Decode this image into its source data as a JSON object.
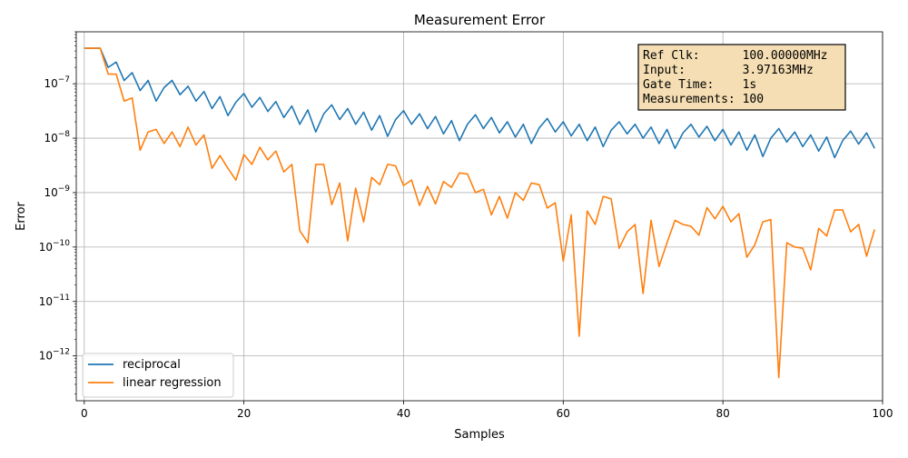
{
  "chart_data": {
    "type": "line",
    "title": "Measurement Error",
    "xlabel": "Samples",
    "ylabel": "Error",
    "xlim": [
      -1,
      100
    ],
    "ylim": [
      1.5e-13,
      9e-07
    ],
    "yscale": "log",
    "grid": true,
    "legend_position": "lower-left",
    "x_ticks": [
      0,
      20,
      40,
      60,
      80,
      100
    ],
    "y_ticks": [
      {
        "value": 1e-12,
        "label": "10^-12"
      },
      {
        "value": 1e-11,
        "label": "10^-11"
      },
      {
        "value": 1e-10,
        "label": "10^-10"
      },
      {
        "value": 1e-09,
        "label": "10^-9"
      },
      {
        "value": 1e-08,
        "label": "10^-8"
      },
      {
        "value": 1e-07,
        "label": "10^-7"
      }
    ],
    "annotation": [
      "Ref Clk:      100.00000MHz",
      "Input:        3.97163MHz",
      "Gate Time:    1s",
      "Measurements: 100"
    ],
    "annotation_colors": {
      "background": "#f5deb3",
      "border": "#000000"
    },
    "x": [
      0,
      1,
      2,
      3,
      4,
      5,
      6,
      7,
      8,
      9,
      10,
      11,
      12,
      13,
      14,
      15,
      16,
      17,
      18,
      19,
      20,
      21,
      22,
      23,
      24,
      25,
      26,
      27,
      28,
      29,
      30,
      31,
      32,
      33,
      34,
      35,
      36,
      37,
      38,
      39,
      40,
      41,
      42,
      43,
      44,
      45,
      46,
      47,
      48,
      49,
      50,
      51,
      52,
      53,
      54,
      55,
      56,
      57,
      58,
      59,
      60,
      61,
      62,
      63,
      64,
      65,
      66,
      67,
      68,
      69,
      70,
      71,
      72,
      73,
      74,
      75,
      76,
      77,
      78,
      79,
      80,
      81,
      82,
      83,
      84,
      85,
      86,
      87,
      88,
      89,
      90,
      91,
      92,
      93,
      94,
      95,
      96,
      97,
      98,
      99
    ],
    "series": [
      {
        "name": "reciprocal",
        "color": "#1f77b4",
        "values": [
          4.5e-07,
          4.5e-07,
          4.5e-07,
          2e-07,
          2.5e-07,
          1.15e-07,
          1.6e-07,
          7.5e-08,
          1.15e-07,
          4.8e-08,
          8.5e-08,
          1.15e-07,
          6.3e-08,
          9e-08,
          4.8e-08,
          7.2e-08,
          3.5e-08,
          5.8e-08,
          2.6e-08,
          4.6e-08,
          6.6e-08,
          3.7e-08,
          5.6e-08,
          3.1e-08,
          4.7e-08,
          2.4e-08,
          3.9e-08,
          1.8e-08,
          3.3e-08,
          1.3e-08,
          2.8e-08,
          4.1e-08,
          2.2e-08,
          3.5e-08,
          1.8e-08,
          3e-08,
          1.4e-08,
          2.6e-08,
          1.08e-08,
          2.2e-08,
          3.2e-08,
          1.8e-08,
          2.8e-08,
          1.5e-08,
          2.5e-08,
          1.2e-08,
          2.1e-08,
          9e-09,
          1.8e-08,
          2.7e-08,
          1.5e-08,
          2.4e-08,
          1.25e-08,
          2e-08,
          1.05e-08,
          1.8e-08,
          8e-09,
          1.55e-08,
          2.3e-08,
          1.3e-08,
          2e-08,
          1.1e-08,
          1.8e-08,
          9e-09,
          1.6e-08,
          7e-09,
          1.4e-08,
          2e-08,
          1.2e-08,
          1.8e-08,
          1e-08,
          1.6e-08,
          8e-09,
          1.45e-08,
          6.5e-09,
          1.25e-08,
          1.8e-08,
          1.05e-08,
          1.65e-08,
          9e-09,
          1.45e-08,
          7.5e-09,
          1.3e-08,
          6e-09,
          1.15e-08,
          4.6e-09,
          1e-08,
          1.5e-08,
          8.5e-09,
          1.3e-08,
          7e-09,
          1.15e-08,
          5.8e-09,
          1.05e-08,
          4.4e-09,
          9e-09,
          1.35e-08,
          7.8e-09,
          1.25e-08,
          6.5e-09
        ]
      },
      {
        "name": "linear regression",
        "color": "#ff7f0e",
        "values": [
          4.5e-07,
          4.5e-07,
          4.5e-07,
          1.5e-07,
          1.5e-07,
          4.8e-08,
          5.5e-08,
          6e-09,
          1.3e-08,
          1.45e-08,
          8e-09,
          1.3e-08,
          7e-09,
          1.6e-08,
          7.5e-09,
          1.15e-08,
          2.8e-09,
          4.8e-09,
          2.8e-09,
          1.7e-09,
          5e-09,
          3.3e-09,
          6.8e-09,
          4e-09,
          5.8e-09,
          2.4e-09,
          3.3e-09,
          2e-10,
          1.2e-10,
          3.3e-09,
          3.3e-09,
          6e-10,
          1.5e-09,
          1.3e-10,
          1.2e-09,
          2.9e-10,
          1.9e-09,
          1.4e-09,
          3.3e-09,
          3.1e-09,
          1.35e-09,
          1.7e-09,
          5.8e-10,
          1.3e-09,
          6.2e-10,
          1.6e-09,
          1.25e-09,
          2.3e-09,
          2.2e-09,
          1e-09,
          1.15e-09,
          3.9e-10,
          8.5e-10,
          3.4e-10,
          1e-09,
          7.2e-10,
          1.5e-09,
          1.4e-09,
          5.2e-10,
          6.5e-10,
          5.5e-11,
          3.9e-10,
          2.3e-12,
          4.6e-10,
          2.6e-10,
          8.5e-10,
          7.7e-10,
          9.5e-11,
          1.9e-10,
          2.6e-10,
          1.4e-11,
          3.1e-10,
          4.4e-11,
          1.2e-10,
          3.1e-10,
          2.6e-10,
          2.4e-10,
          1.65e-10,
          5.3e-10,
          3.3e-10,
          5.6e-10,
          2.9e-10,
          4.1e-10,
          6.5e-11,
          1.1e-10,
          2.9e-10,
          3.2e-10,
          4e-13,
          1.2e-10,
          1e-10,
          9.5e-11,
          3.8e-11,
          2.2e-10,
          1.6e-10,
          4.8e-10,
          4.8e-10,
          1.9e-10,
          2.6e-10,
          6.8e-11,
          2.1e-10
        ]
      }
    ]
  }
}
